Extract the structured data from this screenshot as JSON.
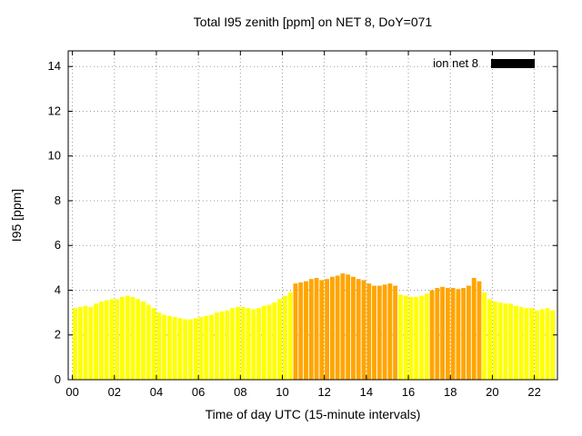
{
  "window": {
    "title": "Total I95 zenith [ppm] on NET 8, DoY=071"
  },
  "chart_data": {
    "type": "bar",
    "title": "Total I95 zenith [ppm] on NET 8, DoY=071",
    "xlabel": "Time of day UTC (15-minute intervals)",
    "ylabel": "I95 [ppm]",
    "legend": {
      "label": "ion net 8",
      "swatch_color": "#000000",
      "position": "top-right"
    },
    "grid": true,
    "xlim": [
      -0.2,
      23.1
    ],
    "ylim": [
      0,
      14.7
    ],
    "x_ticks": {
      "values": [
        0,
        2,
        4,
        6,
        8,
        10,
        12,
        14,
        16,
        18,
        20,
        22
      ],
      "labels": [
        "00",
        "02",
        "04",
        "06",
        "08",
        "10",
        "12",
        "14",
        "16",
        "18",
        "20",
        "22"
      ]
    },
    "y_ticks": [
      0,
      2,
      4,
      6,
      8,
      10,
      12,
      14
    ],
    "interval_minutes": 15,
    "time_start": "00:00",
    "time_end": "22:45",
    "colors": {
      "yellow": "#ffff00",
      "orange": "#ffa500"
    },
    "orange_index_ranges": [
      [
        42,
        61
      ],
      [
        68,
        77
      ]
    ],
    "values": [
      3.2,
      3.25,
      3.3,
      3.25,
      3.4,
      3.5,
      3.55,
      3.6,
      3.6,
      3.7,
      3.75,
      3.7,
      3.6,
      3.5,
      3.35,
      3.2,
      3.0,
      2.9,
      2.85,
      2.8,
      2.75,
      2.7,
      2.7,
      2.75,
      2.8,
      2.85,
      2.9,
      3.0,
      3.05,
      3.1,
      3.2,
      3.25,
      3.25,
      3.2,
      3.15,
      3.2,
      3.3,
      3.35,
      3.45,
      3.6,
      3.75,
      3.9,
      4.3,
      4.35,
      4.4,
      4.5,
      4.55,
      4.45,
      4.5,
      4.6,
      4.65,
      4.75,
      4.7,
      4.6,
      4.5,
      4.45,
      4.3,
      4.2,
      4.2,
      4.25,
      4.3,
      4.2,
      3.8,
      3.75,
      3.7,
      3.7,
      3.75,
      3.85,
      4.0,
      4.1,
      4.15,
      4.1,
      4.1,
      4.05,
      4.1,
      4.2,
      4.55,
      4.4,
      3.9,
      3.6,
      3.5,
      3.45,
      3.4,
      3.4,
      3.3,
      3.25,
      3.2,
      3.2,
      3.1,
      3.15,
      3.2,
      3.1
    ]
  }
}
